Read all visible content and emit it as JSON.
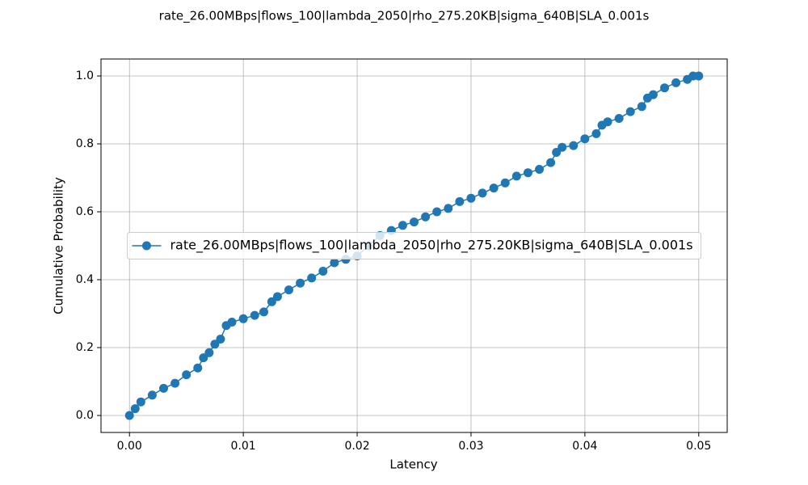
{
  "chart_data": {
    "type": "line",
    "title": "rate_26.00MBps|flows_100|lambda_2050|rho_275.20KB|sigma_640B|SLA_0.001s",
    "x_label": "Latency",
    "y_label": "Cumulative Probability",
    "x": [
      0,
      0.0005,
      0.001,
      0.002,
      0.003,
      0.004,
      0.005,
      0.006,
      0.0065,
      0.007,
      0.0075,
      0.008,
      0.0085,
      0.009,
      0.01,
      0.011,
      0.0118,
      0.0125,
      0.013,
      0.014,
      0.015,
      0.016,
      0.017,
      0.018,
      0.019,
      0.02,
      0.021,
      0.022,
      0.023,
      0.024,
      0.025,
      0.026,
      0.027,
      0.028,
      0.029,
      0.03,
      0.031,
      0.032,
      0.033,
      0.034,
      0.035,
      0.036,
      0.037,
      0.0375,
      0.038,
      0.039,
      0.04,
      0.041,
      0.0415,
      0.042,
      0.043,
      0.044,
      0.045,
      0.0455,
      0.046,
      0.047,
      0.048,
      0.049,
      0.0495,
      0.05
    ],
    "series": [
      {
        "name": "rate_26.00MBps|flows_100|lambda_2050|rho_275.20KB|sigma_640B|SLA_0.001s",
        "color": "#1f77b4",
        "values": [
          0,
          0.02,
          0.04,
          0.06,
          0.08,
          0.095,
          0.12,
          0.14,
          0.17,
          0.185,
          0.21,
          0.225,
          0.265,
          0.275,
          0.285,
          0.295,
          0.305,
          0.335,
          0.35,
          0.37,
          0.39,
          0.405,
          0.425,
          0.45,
          0.46,
          0.47,
          0.5,
          0.53,
          0.545,
          0.56,
          0.57,
          0.585,
          0.6,
          0.61,
          0.63,
          0.64,
          0.655,
          0.67,
          0.685,
          0.705,
          0.715,
          0.725,
          0.745,
          0.775,
          0.79,
          0.795,
          0.815,
          0.83,
          0.855,
          0.865,
          0.875,
          0.895,
          0.91,
          0.935,
          0.945,
          0.965,
          0.98,
          0.99,
          1.0,
          1.0
        ]
      }
    ],
    "xlim": [
      -0.0025,
      0.0525
    ],
    "xticks": [
      {
        "value": 0,
        "label": "0.00"
      },
      {
        "value": 0.01,
        "label": "0.01"
      },
      {
        "value": 0.02,
        "label": "0.02"
      },
      {
        "value": 0.03,
        "label": "0.03"
      },
      {
        "value": 0.04,
        "label": "0.04"
      },
      {
        "value": 0.05,
        "label": "0.05"
      }
    ],
    "ylim": [
      -0.05,
      1.05
    ],
    "yticks": [
      {
        "value": 0,
        "label": "0.0"
      },
      {
        "value": 0.2,
        "label": "0.2"
      },
      {
        "value": 0.4,
        "label": "0.4"
      },
      {
        "value": 0.6,
        "label": "0.6"
      },
      {
        "value": 0.8,
        "label": "0.8"
      },
      {
        "value": 1.0,
        "label": "1.0"
      }
    ],
    "grid": true,
    "legend": "center"
  }
}
